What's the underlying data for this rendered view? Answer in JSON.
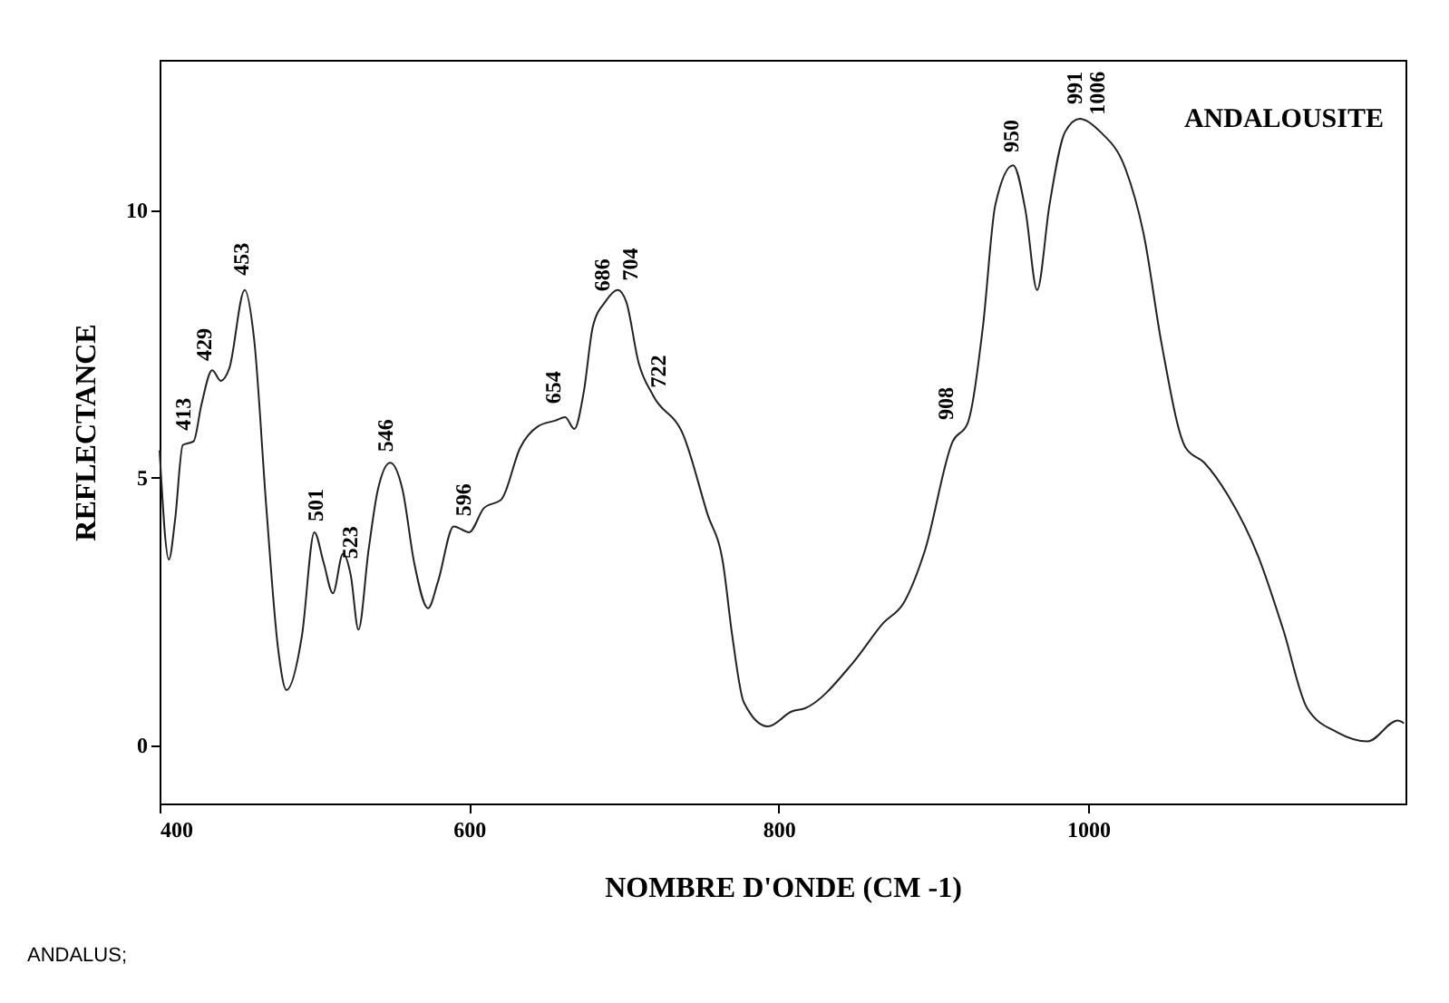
{
  "chart_data": {
    "type": "line",
    "title": "ANDALOUSITE",
    "xlabel": "NOMBRE D'ONDE (CM -1)",
    "ylabel": "REFLECTANCE",
    "x": [
      400,
      406,
      410,
      415,
      422,
      427,
      434,
      439.5,
      445,
      455,
      461,
      469,
      476.5,
      482,
      492,
      500,
      506,
      512,
      518.5,
      523.5,
      528.5,
      535,
      541,
      549,
      557,
      564.5,
      573.5,
      580,
      590,
      600,
      609.5,
      621,
      633,
      644.5,
      656,
      662,
      668,
      674,
      680,
      688,
      696,
      701.5,
      709.5,
      719,
      738.5,
      754,
      764,
      770,
      777.5,
      793,
      808.5,
      817,
      848,
      867.5,
      881,
      894.5,
      912.5,
      922,
      932,
      940,
      951.5,
      959.5,
      967,
      975,
      985,
      994.5,
      1008,
      1024,
      1036,
      1047.5,
      1063,
      1075,
      1090.5,
      1110,
      1126,
      1141.5,
      1161,
      1180.5,
      1200,
      1204
    ],
    "series": [
      {
        "color": "#222222",
        "values": [
          5.5,
          3.46,
          4.2,
          5.6,
          5.67,
          6.35,
          7.0,
          6.8,
          7.03,
          8.5,
          7.6,
          4.42,
          1.81,
          1.02,
          2.04,
          3.97,
          3.4,
          2.83,
          3.57,
          3.17,
          2.15,
          3.63,
          4.76,
          5.27,
          4.76,
          3.4,
          2.55,
          3.06,
          4.08,
          3.97,
          4.42,
          4.59,
          5.55,
          5.95,
          6.06,
          6.12,
          5.9,
          6.58,
          7.82,
          8.28,
          8.5,
          8.28,
          7.14,
          6.52,
          5.78,
          4.31,
          3.4,
          2.04,
          0.79,
          0.34,
          0.62,
          0.68,
          1.53,
          2.27,
          2.66,
          3.63,
          5.67,
          6.0,
          7.82,
          10.09,
          10.83,
          9.98,
          8.5,
          10.09,
          11.45,
          11.7,
          11.45,
          10.77,
          9.52,
          7.48,
          5.55,
          5.27,
          4.65,
          3.51,
          2.15,
          0.68,
          0.23,
          0.06,
          0.45,
          0.4
        ]
      }
    ],
    "xlim": [
      400,
      1205
    ],
    "xticks": [
      400,
      600,
      800,
      1000
    ],
    "ylim": [
      -1.1,
      12.8
    ],
    "yticks": [
      0,
      5,
      10
    ],
    "grid": false,
    "marker": "none",
    "line_style": "solid",
    "annotations": [
      {
        "text": "413",
        "x": 415,
        "y": 5.6
      },
      {
        "text": "429",
        "x": 429,
        "y": 6.9
      },
      {
        "text": "453",
        "x": 453,
        "y": 8.5
      },
      {
        "text": "501",
        "x": 501,
        "y": 3.9
      },
      {
        "text": "523",
        "x": 523,
        "y": 3.2
      },
      {
        "text": "546",
        "x": 546,
        "y": 5.2
      },
      {
        "text": "596",
        "x": 596,
        "y": 4.0
      },
      {
        "text": "654",
        "x": 654,
        "y": 6.1
      },
      {
        "text": "686",
        "x": 686,
        "y": 8.2
      },
      {
        "text": "704",
        "x": 704,
        "y": 8.4
      },
      {
        "text": "722",
        "x": 722,
        "y": 6.4
      },
      {
        "text": "908",
        "x": 908,
        "y": 5.8
      },
      {
        "text": "950",
        "x": 950,
        "y": 10.8
      },
      {
        "text": "991",
        "x": 991,
        "y": 11.7
      },
      {
        "text": "1006",
        "x": 1006,
        "y": 11.5
      },
      "ANDALUS;"
    ]
  }
}
